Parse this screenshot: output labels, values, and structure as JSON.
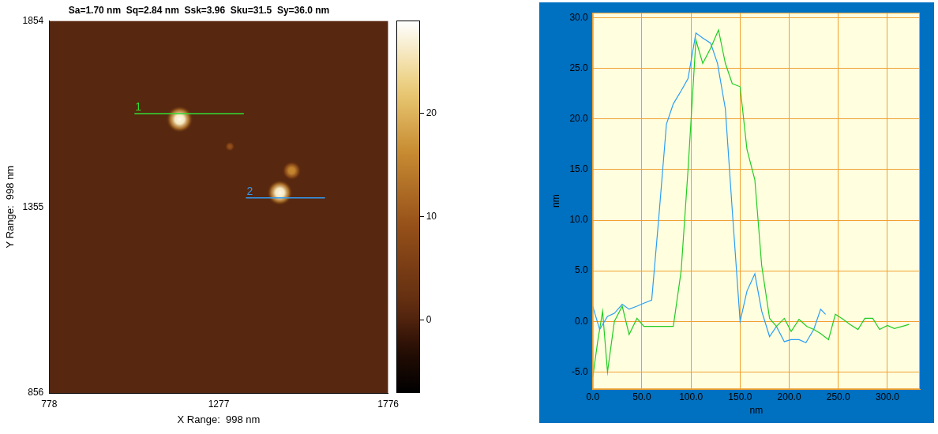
{
  "chart_data": [
    {
      "type": "image",
      "title": "Sa=1.70 nm  Sq=2.84 nm  Ssk=3.96  Sku=31.5  Sy=36.0 nm",
      "x_label": "X Range:  998 nm",
      "y_label": "Y Range:  998 nm",
      "xlim": [
        778,
        1776
      ],
      "xticks": [
        778,
        1277,
        1776
      ],
      "ylim": [
        856,
        1854
      ],
      "yticks": [
        856,
        1355,
        1854
      ],
      "grid": false,
      "features": [
        {
          "x": 1162,
          "y": 1590,
          "height": 28,
          "radius": 40
        },
        {
          "x": 1457,
          "y": 1393,
          "height": 28,
          "radius": 38
        },
        {
          "x": 1492,
          "y": 1452,
          "height": 16,
          "radius": 28
        },
        {
          "x": 1310,
          "y": 1517,
          "height": 9,
          "radius": 14
        }
      ],
      "profile_lines": [
        {
          "label": "1",
          "color": "#33dd33",
          "x": [
            1029,
            1351
          ],
          "y": [
            1605,
            1605
          ]
        },
        {
          "label": "2",
          "color": "#3399ee",
          "x": [
            1357,
            1590
          ],
          "y": [
            1379,
            1379
          ]
        }
      ],
      "colorbar_range": [
        -7.1,
        28.9
      ],
      "colorbar_ticks": [
        0,
        10,
        20
      ]
    },
    {
      "type": "line",
      "x_label": "nm",
      "y_label": "nm",
      "xlim": [
        0,
        333
      ],
      "xticks": [
        {
          "value": 0,
          "label": "0.0"
        },
        {
          "value": 50,
          "label": "50.0"
        },
        {
          "value": 100,
          "label": "100.0"
        },
        {
          "value": 150,
          "label": "150.0"
        },
        {
          "value": 200,
          "label": "200.0"
        },
        {
          "value": 250,
          "label": "250.0"
        },
        {
          "value": 300,
          "label": "300.0"
        }
      ],
      "ylim": [
        -6.7,
        30.5
      ],
      "yticks": [
        {
          "value": -5,
          "label": "-5.0"
        },
        {
          "value": 0,
          "label": "0.0"
        },
        {
          "value": 5,
          "label": "5.0"
        },
        {
          "value": 10,
          "label": "10.0"
        },
        {
          "value": 15,
          "label": "15.0"
        },
        {
          "value": 20,
          "label": "20.0"
        },
        {
          "value": 25,
          "label": "25.0"
        },
        {
          "value": 30,
          "label": "30.0"
        }
      ],
      "grid": true,
      "series": [
        {
          "name": "1",
          "color": "#22cc22",
          "x": [
            0,
            5,
            10,
            15,
            22,
            30,
            37,
            45,
            52,
            60,
            67,
            75,
            82,
            90,
            97,
            105,
            112,
            120,
            128,
            135,
            142,
            150,
            157,
            165,
            172,
            180,
            187,
            195,
            202,
            210,
            218,
            225,
            232,
            240,
            247,
            255,
            262,
            270,
            277,
            285,
            292,
            300,
            307,
            315,
            322
          ],
          "values": [
            -5.5,
            -2,
            1,
            -5,
            0,
            1.5,
            -1.3,
            0.3,
            -0.5,
            -0.5,
            -0.5,
            -0.5,
            -0.5,
            5,
            15,
            27.8,
            25.5,
            27,
            28.8,
            25.5,
            23.5,
            23.2,
            17,
            14,
            5.5,
            0.3,
            -0.5,
            0.3,
            -1,
            0.2,
            -0.5,
            -0.8,
            -1.2,
            -1.8,
            0.7,
            0.2,
            -0.3,
            -0.8,
            0.3,
            0.3,
            -0.8,
            -0.4,
            -0.7,
            -0.5,
            -0.3
          ]
        },
        {
          "name": "2",
          "color": "#2a9df4",
          "x": [
            0,
            7,
            15,
            22,
            30,
            37,
            45,
            52,
            60,
            67,
            75,
            82,
            90,
            97,
            105,
            112,
            120,
            127,
            135,
            142,
            150,
            157,
            165,
            172,
            180,
            187,
            195,
            202,
            210,
            217,
            225,
            232,
            237
          ],
          "values": [
            1.5,
            -0.8,
            0.5,
            0.8,
            1.7,
            1.2,
            1.5,
            1.8,
            2.1,
            10,
            19.5,
            21.5,
            22.8,
            24,
            28.5,
            28,
            27.5,
            25.5,
            21,
            11,
            0,
            3,
            4.7,
            1,
            -1.5,
            -0.5,
            -2,
            -1.8,
            -1.8,
            -2.1,
            -0.8,
            1.2,
            0.7
          ]
        }
      ]
    }
  ]
}
